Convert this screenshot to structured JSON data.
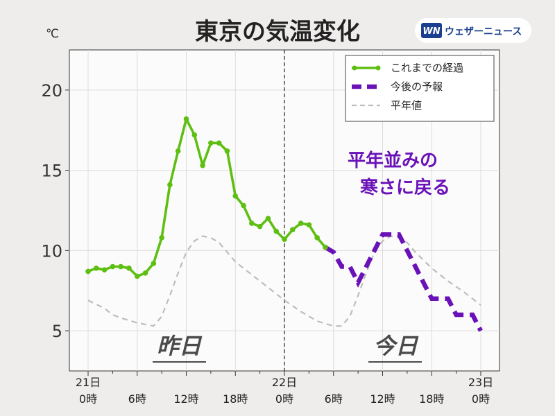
{
  "header": {
    "title": "東京の気温変化",
    "unit": "℃"
  },
  "brand": {
    "mark": "WN",
    "name": "ウェザーニュース"
  },
  "legend": [
    {
      "label": "これまでの経過",
      "color": "#5ebf12",
      "style": "solid-dots"
    },
    {
      "label": "今後の予報",
      "color": "#6a12b8",
      "style": "thick-dash"
    },
    {
      "label": "平年値",
      "color": "#bdbdbd",
      "style": "dash"
    }
  ],
  "annotation": {
    "line1": "平年並みの",
    "line2": "寒さに戻る"
  },
  "day_labels": {
    "yesterday": "昨日",
    "today": "今日"
  },
  "x_axis": {
    "ticks": [
      {
        "hour": 0,
        "line1": "21日",
        "line2": "0時"
      },
      {
        "hour": 6,
        "line1": "",
        "line2": "6時"
      },
      {
        "hour": 12,
        "line1": "",
        "line2": "12時"
      },
      {
        "hour": 18,
        "line1": "",
        "line2": "18時"
      },
      {
        "hour": 24,
        "line1": "22日",
        "line2": "0時"
      },
      {
        "hour": 30,
        "line1": "",
        "line2": "6時"
      },
      {
        "hour": 36,
        "line1": "",
        "line2": "12時"
      },
      {
        "hour": 42,
        "line1": "",
        "line2": "18時"
      },
      {
        "hour": 48,
        "line1": "23日",
        "line2": "0時"
      }
    ],
    "range": [
      0,
      48
    ]
  },
  "chart_data": {
    "type": "line",
    "title": "東京の気温変化",
    "ylabel": "℃",
    "xlabel": "",
    "ylim": [
      2.5,
      22.5
    ],
    "yticks": [
      5,
      10,
      15,
      20
    ],
    "x_unit": "hours from 21日0時",
    "divider_x": 24,
    "grid": true,
    "legend_position": "top-right",
    "series": [
      {
        "name": "これまでの経過",
        "color": "#5ebf12",
        "x": [
          0,
          1,
          2,
          3,
          4,
          5,
          6,
          7,
          8,
          9,
          10,
          11,
          12,
          13,
          14,
          15,
          16,
          17,
          18,
          19,
          20,
          21,
          22,
          23,
          24,
          25,
          26,
          27,
          28,
          29
        ],
        "y": [
          8.7,
          8.9,
          8.8,
          9.0,
          9.0,
          8.9,
          8.4,
          8.6,
          9.2,
          10.8,
          14.1,
          16.2,
          18.2,
          17.2,
          15.3,
          16.7,
          16.7,
          16.2,
          13.4,
          12.8,
          11.7,
          11.5,
          12.0,
          11.2,
          10.7,
          11.3,
          11.7,
          11.6,
          10.8,
          10.2
        ]
      },
      {
        "name": "今後の予報",
        "color": "#6a12b8",
        "x": [
          29,
          30,
          31,
          32,
          33,
          34,
          35,
          36,
          37,
          38,
          39,
          40,
          41,
          42,
          43,
          44,
          45,
          46,
          47,
          48
        ],
        "y": [
          10.2,
          9.9,
          9.0,
          9.0,
          8.0,
          9.0,
          10.0,
          11.0,
          11.0,
          11.0,
          10.0,
          9.0,
          8.0,
          7.0,
          7.0,
          7.0,
          6.0,
          6.0,
          6.0,
          5.0
        ]
      },
      {
        "name": "平年値",
        "color": "#bdbdbd",
        "x": [
          0,
          2,
          3,
          4,
          6,
          7,
          8,
          9,
          10,
          11,
          12,
          13,
          14,
          15,
          16,
          18,
          20,
          22,
          24,
          26,
          28,
          30,
          31,
          32,
          33,
          34,
          35,
          36,
          37,
          38,
          39,
          40,
          42,
          44,
          46,
          48
        ],
        "y": [
          6.9,
          6.4,
          6.0,
          5.8,
          5.5,
          5.4,
          5.3,
          5.9,
          7.2,
          8.6,
          9.9,
          10.6,
          10.9,
          10.8,
          10.5,
          9.3,
          8.5,
          7.7,
          6.9,
          6.2,
          5.6,
          5.3,
          5.3,
          5.9,
          7.2,
          8.6,
          9.9,
          10.6,
          10.9,
          10.8,
          10.5,
          9.9,
          8.9,
          8.1,
          7.4,
          6.6
        ]
      }
    ]
  }
}
